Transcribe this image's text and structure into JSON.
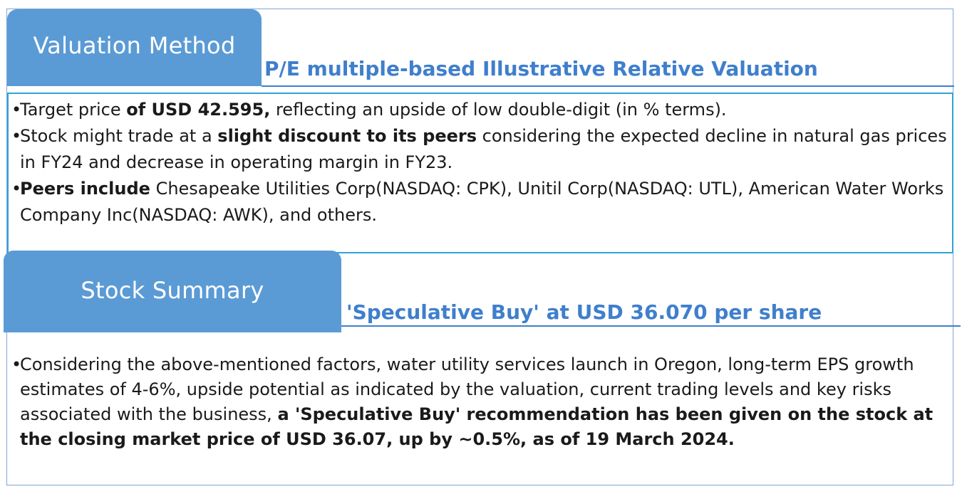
{
  "valuation_method": {
    "tab_label": "Valuation Method",
    "subheading": "P/E multiple-based Illustrative Relative Valuation",
    "bullets": [
      {
        "marker": "•",
        "pre": "Target price ",
        "bold": "of USD 42.595,",
        "post": " reflecting an upside of low double-digit (in % terms)."
      },
      {
        "marker": "•",
        "pre": " Stock might trade at a ",
        "bold": "slight discount to its peers",
        "post": " considering the expected decline in natural gas prices in FY24 and decrease in operating margin in FY23."
      },
      {
        "marker": "•",
        "pre": " ",
        "bold": "Peers include",
        "post": " Chesapeake Utilities Corp(NASDAQ: CPK), Unitil Corp(NASDAQ: UTL), American Water Works Company Inc(NASDAQ: AWK), and others."
      }
    ]
  },
  "stock_summary": {
    "tab_label": "Stock Summary",
    "subheading": "'Speculative Buy' at USD 36.070 per share",
    "bullets": [
      {
        "marker": "•",
        "pre": "Considering the above-mentioned factors, water utility services launch in Oregon, long-term EPS growth estimates of 4-6%, upside potential as indicated by the valuation, current trading levels and key risks associated with the business, ",
        "bold": "a 'Speculative Buy' recommendation has been given on the stock at the closing market price of USD 36.07, up by ~0.5%, as of 19 March 2024.",
        "post": ""
      }
    ]
  },
  "colors": {
    "tab_fill": "#5b9bd5",
    "heading_blue": "#3f7fcc",
    "box_border": "#2fa3d6",
    "frame_border": "#7fa6d6"
  }
}
